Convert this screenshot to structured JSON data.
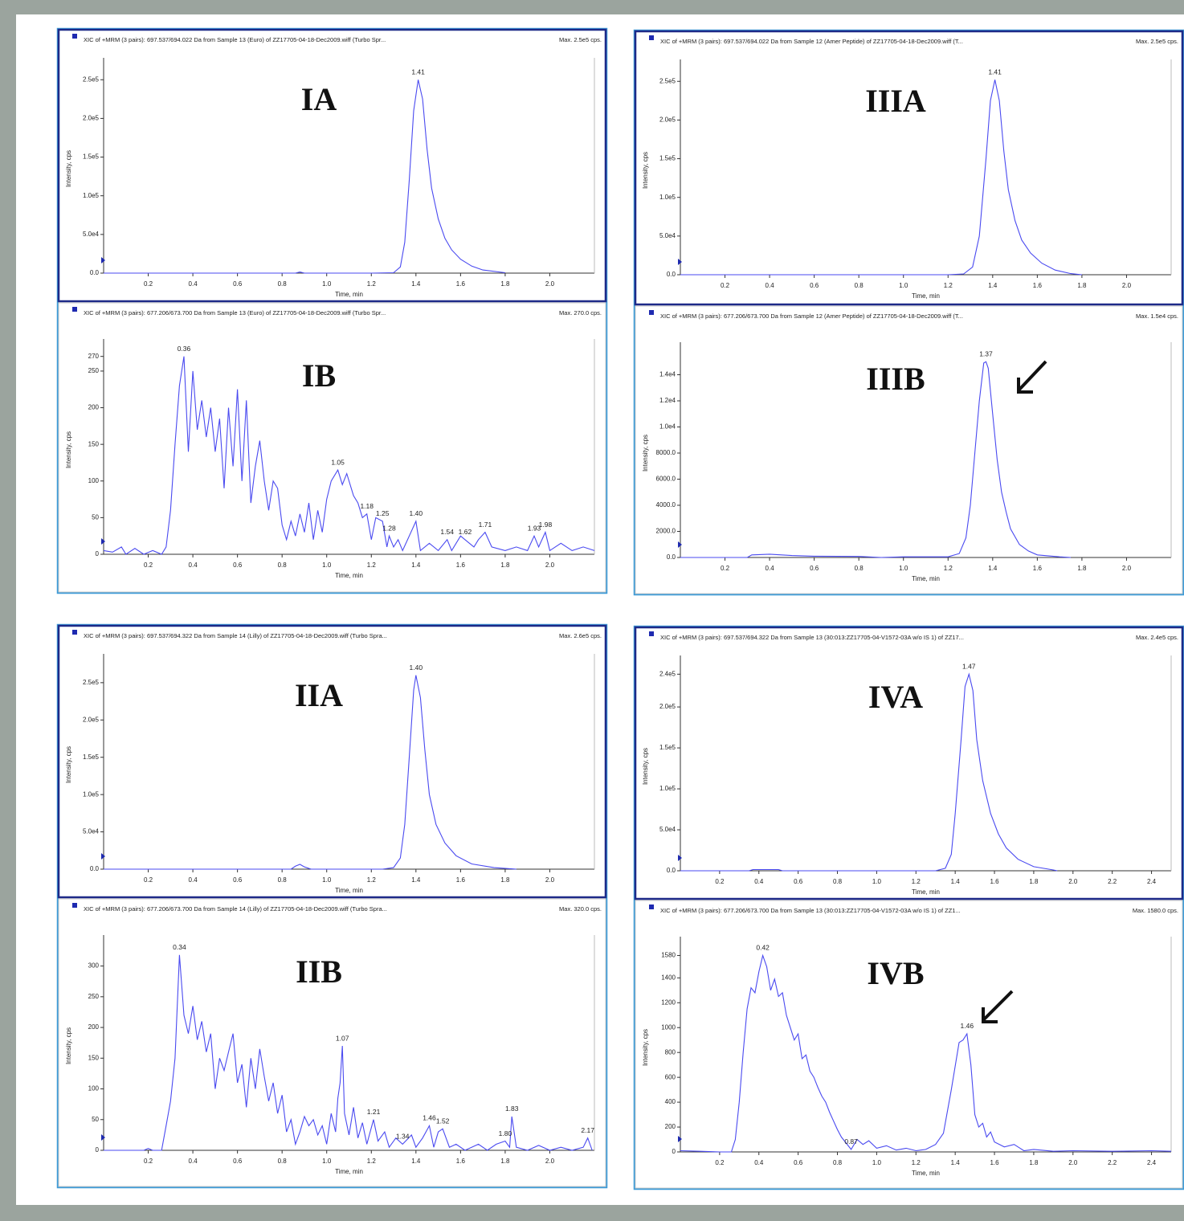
{
  "chart_data": [
    {
      "type": "line",
      "panel_label": "IA",
      "header": "XIC of +MRM (3 pairs): 697.537/694.022 Da  from Sample 13 (Euro) of ZZ17705-04-18-Dec2009.wiff (Turbo Spr...",
      "max_label": "Max. 2.5e5 cps.",
      "x_label": "Time, min",
      "y_label": "Intensity, cps",
      "color": "#4a4af0",
      "x": [
        0,
        0.5,
        0.86,
        0.88,
        0.9,
        1.2,
        1.3,
        1.33,
        1.35,
        1.37,
        1.39,
        1.41,
        1.43,
        1.45,
        1.47,
        1.5,
        1.53,
        1.56,
        1.6,
        1.65,
        1.7,
        1.8
      ],
      "values": [
        0,
        0,
        0,
        1500,
        0,
        0,
        500,
        8000,
        40000,
        120000,
        210000,
        250000,
        225000,
        160000,
        110000,
        70000,
        45000,
        30000,
        18000,
        9000,
        4000,
        500
      ],
      "peaks": [
        1.41
      ],
      "xlim": [
        0,
        2.2
      ],
      "ylim": [
        0,
        270000
      ],
      "xticks": [
        0.2,
        0.4,
        0.6,
        0.8,
        {
          "value": 1,
          "label": "1.0"
        },
        1.2,
        1.4,
        1.6,
        1.8,
        {
          "value": 2,
          "label": "2.0"
        }
      ],
      "yticks": [
        {
          "value": 0,
          "label": "0.0"
        },
        {
          "value": 50000,
          "label": "5.0e4"
        },
        {
          "value": 100000,
          "label": "1.0e5"
        },
        {
          "value": 150000,
          "label": "1.5e5"
        },
        {
          "value": 200000,
          "label": "2.0e5"
        },
        {
          "value": 250000,
          "label": "2.5e5"
        }
      ]
    },
    {
      "type": "line",
      "panel_label": "IB",
      "header": "XIC of +MRM (3 pairs): 677.206/673.700 Da  from Sample 13 (Euro) of ZZ17705-04-18-Dec2009.wiff (Turbo Spr...",
      "max_label": "Max. 270.0 cps.",
      "x_label": "Time, min",
      "y_label": "Intensity, cps",
      "color": "#4a4af0",
      "x": [
        0,
        0.04,
        0.08,
        0.1,
        0.14,
        0.18,
        0.22,
        0.26,
        0.28,
        0.3,
        0.32,
        0.34,
        0.36,
        0.38,
        0.4,
        0.42,
        0.44,
        0.46,
        0.48,
        0.5,
        0.52,
        0.54,
        0.56,
        0.58,
        0.6,
        0.62,
        0.64,
        0.66,
        0.68,
        0.7,
        0.72,
        0.74,
        0.76,
        0.78,
        0.8,
        0.82,
        0.84,
        0.86,
        0.88,
        0.9,
        0.92,
        0.94,
        0.96,
        0.98,
        1,
        1.02,
        1.05,
        1.07,
        1.09,
        1.12,
        1.14,
        1.16,
        1.18,
        1.2,
        1.22,
        1.25,
        1.27,
        1.28,
        1.3,
        1.32,
        1.34,
        1.37,
        1.4,
        1.42,
        1.46,
        1.5,
        1.54,
        1.56,
        1.6,
        1.62,
        1.66,
        1.68,
        1.71,
        1.74,
        1.8,
        1.85,
        1.9,
        1.93,
        1.95,
        1.98,
        2,
        2.05,
        2.1,
        2.15,
        2.2
      ],
      "values": [
        5,
        3,
        10,
        0,
        8,
        0,
        5,
        0,
        10,
        60,
        150,
        230,
        270,
        140,
        250,
        170,
        210,
        160,
        200,
        140,
        185,
        90,
        200,
        120,
        225,
        100,
        210,
        70,
        120,
        155,
        100,
        60,
        100,
        90,
        40,
        20,
        45,
        25,
        55,
        30,
        70,
        20,
        60,
        30,
        75,
        100,
        115,
        95,
        110,
        80,
        70,
        50,
        55,
        20,
        50,
        45,
        10,
        25,
        10,
        20,
        5,
        25,
        45,
        5,
        15,
        5,
        20,
        5,
        25,
        20,
        10,
        20,
        30,
        10,
        5,
        10,
        5,
        25,
        10,
        30,
        5,
        15,
        5,
        10,
        5
      ],
      "peaks": [
        0.36,
        1.05,
        1.18,
        1.25,
        1.28,
        {
          "value": 1.4,
          "label": "1.40"
        },
        1.54,
        1.62,
        1.71,
        1.93,
        1.98
      ],
      "xlim": [
        0,
        2.2
      ],
      "ylim": [
        0,
        285
      ],
      "xticks": [
        0.2,
        0.4,
        0.6,
        0.8,
        {
          "value": 1,
          "label": "1.0"
        },
        1.2,
        1.4,
        1.6,
        1.8,
        {
          "value": 2,
          "label": "2.0"
        }
      ],
      "yticks": [
        0,
        50,
        100,
        150,
        200,
        250,
        270
      ]
    },
    {
      "type": "line",
      "panel_label": "IIIA",
      "header": "XIC of +MRM (3 pairs): 697.537/694.022 Da  from Sample 12 (Amer Peptide) of ZZ17705-04-18-Dec2009.wiff (T...",
      "max_label": "Max. 2.5e5 cps.",
      "x_label": "Time, min",
      "y_label": "Intensity, cps",
      "color": "#4a4af0",
      "x": [
        0,
        1.2,
        1.27,
        1.31,
        1.34,
        1.37,
        1.39,
        1.41,
        1.43,
        1.45,
        1.47,
        1.5,
        1.53,
        1.57,
        1.62,
        1.68,
        1.75,
        1.8
      ],
      "values": [
        0,
        0,
        1000,
        10000,
        50000,
        150000,
        225000,
        252000,
        225000,
        160000,
        110000,
        70000,
        45000,
        28000,
        15000,
        6000,
        1500,
        0
      ],
      "peaks": [
        1.41
      ],
      "xlim": [
        0,
        2.2
      ],
      "ylim": [
        0,
        270000
      ],
      "xticks": [
        0.2,
        0.4,
        0.6,
        0.8,
        {
          "value": 1,
          "label": "1.0"
        },
        1.2,
        1.4,
        1.6,
        1.8,
        {
          "value": 2,
          "label": "2.0"
        }
      ],
      "yticks": [
        {
          "value": 0,
          "label": "0.0"
        },
        {
          "value": 50000,
          "label": "5.0e4"
        },
        {
          "value": 100000,
          "label": "1.0e5"
        },
        {
          "value": 150000,
          "label": "1.5e5"
        },
        {
          "value": 200000,
          "label": "2.0e5"
        },
        {
          "value": 250000,
          "label": "2.5e5"
        }
      ]
    },
    {
      "type": "line",
      "panel_label": "IIIB",
      "header": "XIC of +MRM (3 pairs): 677.206/673.700 Da  from Sample 12 (Amer Peptide) of ZZ17705-04-18-Dec2009.wiff (T...",
      "max_label": "Max. 1.5e4 cps.",
      "x_label": "Time, min",
      "y_label": "Intensity, cps",
      "color": "#4a4af0",
      "x": [
        0,
        0.3,
        0.32,
        0.4,
        0.5,
        0.6,
        0.8,
        0.9,
        1,
        1.2,
        1.25,
        1.28,
        1.3,
        1.32,
        1.34,
        1.36,
        1.37,
        1.38,
        1.4,
        1.42,
        1.44,
        1.46,
        1.48,
        1.52,
        1.56,
        1.6,
        1.7,
        1.75
      ],
      "values": [
        0,
        0,
        200,
        250,
        150,
        100,
        80,
        0,
        50,
        50,
        300,
        1500,
        4000,
        8000,
        12000,
        14900,
        15000,
        14500,
        11000,
        7500,
        5000,
        3500,
        2200,
        1000,
        500,
        200,
        50,
        0
      ],
      "peaks": [
        1.37
      ],
      "xlim": [
        0,
        2.2
      ],
      "ylim": [
        0,
        16000
      ],
      "xticks": [
        0.2,
        0.4,
        0.6,
        0.8,
        {
          "value": 1,
          "label": "1.0"
        },
        1.2,
        1.4,
        1.6,
        1.8,
        {
          "value": 2,
          "label": "2.0"
        }
      ],
      "yticks": [
        {
          "value": 0,
          "label": "0.0"
        },
        {
          "value": 2000,
          "label": "2000.0"
        },
        {
          "value": 4000,
          "label": "4000.0"
        },
        {
          "value": 6000,
          "label": "6000.0"
        },
        {
          "value": 8000,
          "label": "8000.0"
        },
        {
          "value": 10000,
          "label": "1.0e4"
        },
        {
          "value": 12000,
          "label": "1.2e4"
        },
        {
          "value": 14000,
          "label": "1.4e4"
        }
      ]
    },
    {
      "type": "line",
      "panel_label": "IIA",
      "header": "XIC of +MRM (3 pairs): 697.537/694.322 Da  from Sample 14 (Lilly) of ZZ17705-04-18-Dec2009.wiff (Turbo Spra...",
      "max_label": "Max. 2.6e5 cps.",
      "x_label": "Time, min",
      "y_label": "Intensity, cps",
      "color": "#4a4af0",
      "x": [
        0,
        0.84,
        0.86,
        0.88,
        0.9,
        0.93,
        1.25,
        1.3,
        1.33,
        1.35,
        1.37,
        1.39,
        1.4,
        1.42,
        1.44,
        1.46,
        1.49,
        1.53,
        1.58,
        1.65,
        1.75,
        1.85
      ],
      "values": [
        0,
        0,
        4000,
        6500,
        3000,
        0,
        0,
        2000,
        15000,
        60000,
        150000,
        240000,
        260000,
        230000,
        160000,
        100000,
        60000,
        35000,
        18000,
        7000,
        2000,
        0
      ],
      "peaks": [
        {
          "value": 1.4,
          "label": "1.40"
        }
      ],
      "xlim": [
        0,
        2.2
      ],
      "ylim": [
        0,
        280000
      ],
      "xticks": [
        0.2,
        0.4,
        0.6,
        0.8,
        {
          "value": 1,
          "label": "1.0"
        },
        1.2,
        1.4,
        1.6,
        1.8,
        {
          "value": 2,
          "label": "2.0"
        }
      ],
      "yticks": [
        {
          "value": 0,
          "label": "0.0"
        },
        {
          "value": 50000,
          "label": "5.0e4"
        },
        {
          "value": 100000,
          "label": "1.0e5"
        },
        {
          "value": 150000,
          "label": "1.5e5"
        },
        {
          "value": 200000,
          "label": "2.0e5"
        },
        {
          "value": 250000,
          "label": "2.5e5"
        }
      ]
    },
    {
      "type": "line",
      "panel_label": "IIB",
      "header": "XIC of +MRM (3 pairs): 677.206/673.700 Da  from Sample 14 (Lilly) of ZZ17705-04-18-Dec2009.wiff (Turbo Spra...",
      "max_label": "Max. 320.0 cps.",
      "x_label": "Time, min",
      "y_label": "Intensity, cps",
      "color": "#4a4af0",
      "x": [
        0,
        0.18,
        0.2,
        0.22,
        0.26,
        0.28,
        0.3,
        0.32,
        0.34,
        0.36,
        0.38,
        0.4,
        0.42,
        0.44,
        0.46,
        0.48,
        0.5,
        0.52,
        0.54,
        0.56,
        0.58,
        0.6,
        0.62,
        0.64,
        0.66,
        0.68,
        0.7,
        0.72,
        0.74,
        0.76,
        0.78,
        0.8,
        0.82,
        0.84,
        0.86,
        0.88,
        0.9,
        0.92,
        0.94,
        0.96,
        0.98,
        1,
        1.02,
        1.04,
        1.05,
        1.06,
        1.07,
        1.08,
        1.1,
        1.12,
        1.14,
        1.16,
        1.18,
        1.21,
        1.23,
        1.26,
        1.28,
        1.31,
        1.34,
        1.38,
        1.4,
        1.43,
        1.46,
        1.48,
        1.5,
        1.52,
        1.55,
        1.58,
        1.62,
        1.68,
        1.72,
        1.76,
        1.8,
        1.82,
        1.83,
        1.85,
        1.9,
        1.95,
        2,
        2.05,
        2.1,
        2.15,
        2.17,
        2.19
      ],
      "values": [
        0,
        0,
        3,
        0,
        0,
        40,
        80,
        150,
        318,
        220,
        190,
        235,
        180,
        210,
        160,
        190,
        100,
        150,
        130,
        160,
        190,
        110,
        140,
        70,
        150,
        100,
        165,
        120,
        80,
        110,
        60,
        90,
        30,
        50,
        10,
        30,
        55,
        40,
        50,
        25,
        40,
        10,
        60,
        30,
        85,
        110,
        170,
        60,
        25,
        70,
        20,
        45,
        10,
        50,
        15,
        30,
        5,
        20,
        10,
        25,
        5,
        20,
        40,
        5,
        30,
        35,
        5,
        10,
        0,
        10,
        0,
        10,
        15,
        5,
        55,
        5,
        0,
        8,
        0,
        5,
        0,
        5,
        20,
        0
      ],
      "peaks": [
        0.34,
        1.07,
        1.21,
        1.34,
        1.46,
        1.52,
        {
          "value": 1.8,
          "label": "1.80"
        },
        1.83,
        2.17
      ],
      "xlim": [
        0,
        2.2
      ],
      "ylim": [
        0,
        340
      ],
      "xticks": [
        0.2,
        0.4,
        0.6,
        0.8,
        {
          "value": 1,
          "label": "1.0"
        },
        1.2,
        1.4,
        1.6,
        1.8,
        {
          "value": 2,
          "label": "2.0"
        }
      ],
      "yticks": [
        0,
        50,
        100,
        150,
        200,
        250,
        300
      ]
    },
    {
      "type": "line",
      "panel_label": "IVA",
      "header": "XIC of +MRM (3 pairs): 697.537/694.322 Da  from Sample 13 (30:013:ZZ17705-04-V1572-03A w/o IS 1) of ZZ17...",
      "max_label": "Max. 2.4e5 cps.",
      "x_label": "Time, min",
      "y_label": "Intensity, cps",
      "color": "#4a4af0",
      "x": [
        0,
        0.35,
        0.37,
        0.5,
        0.52,
        1.3,
        1.35,
        1.38,
        1.4,
        1.43,
        1.45,
        1.47,
        1.49,
        1.51,
        1.54,
        1.58,
        1.62,
        1.66,
        1.72,
        1.8,
        1.9,
        1.92
      ],
      "values": [
        0,
        0,
        1500,
        1500,
        0,
        0,
        3000,
        20000,
        70000,
        160000,
        225000,
        240000,
        220000,
        160000,
        110000,
        70000,
        45000,
        28000,
        14000,
        5000,
        1000,
        0
      ],
      "peaks": [
        1.47
      ],
      "xlim": [
        0,
        2.5
      ],
      "ylim": [
        0,
        255000
      ],
      "xticks": [
        0.2,
        0.4,
        0.6,
        0.8,
        {
          "value": 1,
          "label": "1.0"
        },
        1.2,
        1.4,
        1.6,
        1.8,
        {
          "value": 2,
          "label": "2.0"
        },
        2.2,
        2.4
      ],
      "yticks": [
        {
          "value": 0,
          "label": "0.0"
        },
        {
          "value": 50000,
          "label": "5.0e4"
        },
        {
          "value": 100000,
          "label": "1.0e5"
        },
        {
          "value": 150000,
          "label": "1.5e5"
        },
        {
          "value": 200000,
          "label": "2.0e5"
        },
        {
          "value": 240000,
          "label": "2.4e5"
        }
      ]
    },
    {
      "type": "line",
      "panel_label": "IVB",
      "header": "XIC of +MRM (3 pairs): 677.206/673.700 Da  from Sample 13 (30:013:ZZ17705-04-V1572-03A w/o IS 1) of ZZ1...",
      "max_label": "Max. 1580.0 cps.",
      "x_label": "Time, min",
      "y_label": "Intensity, cps",
      "color": "#4a4af0",
      "x": [
        0,
        0.1,
        0.2,
        0.26,
        0.28,
        0.3,
        0.32,
        0.34,
        0.36,
        0.38,
        0.4,
        0.42,
        0.44,
        0.46,
        0.48,
        0.5,
        0.52,
        0.54,
        0.56,
        0.58,
        0.6,
        0.62,
        0.64,
        0.66,
        0.68,
        0.7,
        0.72,
        0.74,
        0.76,
        0.78,
        0.8,
        0.82,
        0.84,
        0.87,
        0.9,
        0.93,
        0.96,
        1,
        1.05,
        1.1,
        1.15,
        1.2,
        1.25,
        1.3,
        1.34,
        1.38,
        1.42,
        1.44,
        1.46,
        1.48,
        1.5,
        1.52,
        1.54,
        1.56,
        1.58,
        1.6,
        1.65,
        1.7,
        1.75,
        1.8,
        1.9,
        2,
        2.2,
        2.4,
        2.5
      ],
      "values": [
        10,
        5,
        0,
        0,
        100,
        400,
        800,
        1150,
        1320,
        1280,
        1450,
        1580,
        1490,
        1300,
        1390,
        1250,
        1280,
        1100,
        1000,
        900,
        950,
        750,
        780,
        650,
        600,
        520,
        450,
        400,
        320,
        250,
        180,
        120,
        80,
        20,
        100,
        60,
        90,
        30,
        50,
        15,
        30,
        10,
        20,
        60,
        150,
        500,
        880,
        900,
        950,
        700,
        300,
        200,
        230,
        120,
        160,
        80,
        40,
        60,
        10,
        20,
        5,
        10,
        5,
        10,
        5
      ],
      "peaks": [
        0.42,
        0.87,
        1.46
      ],
      "xlim": [
        0,
        2.5
      ],
      "ylim": [
        0,
        1680
      ],
      "xticks": [
        0.2,
        0.4,
        0.6,
        0.8,
        {
          "value": 1,
          "label": "1.0"
        },
        1.2,
        1.4,
        1.6,
        1.8,
        {
          "value": 2,
          "label": "2.0"
        },
        2.2,
        2.4
      ],
      "yticks": [
        0,
        200,
        400,
        600,
        800,
        1000,
        1200,
        1400,
        1580
      ]
    }
  ]
}
